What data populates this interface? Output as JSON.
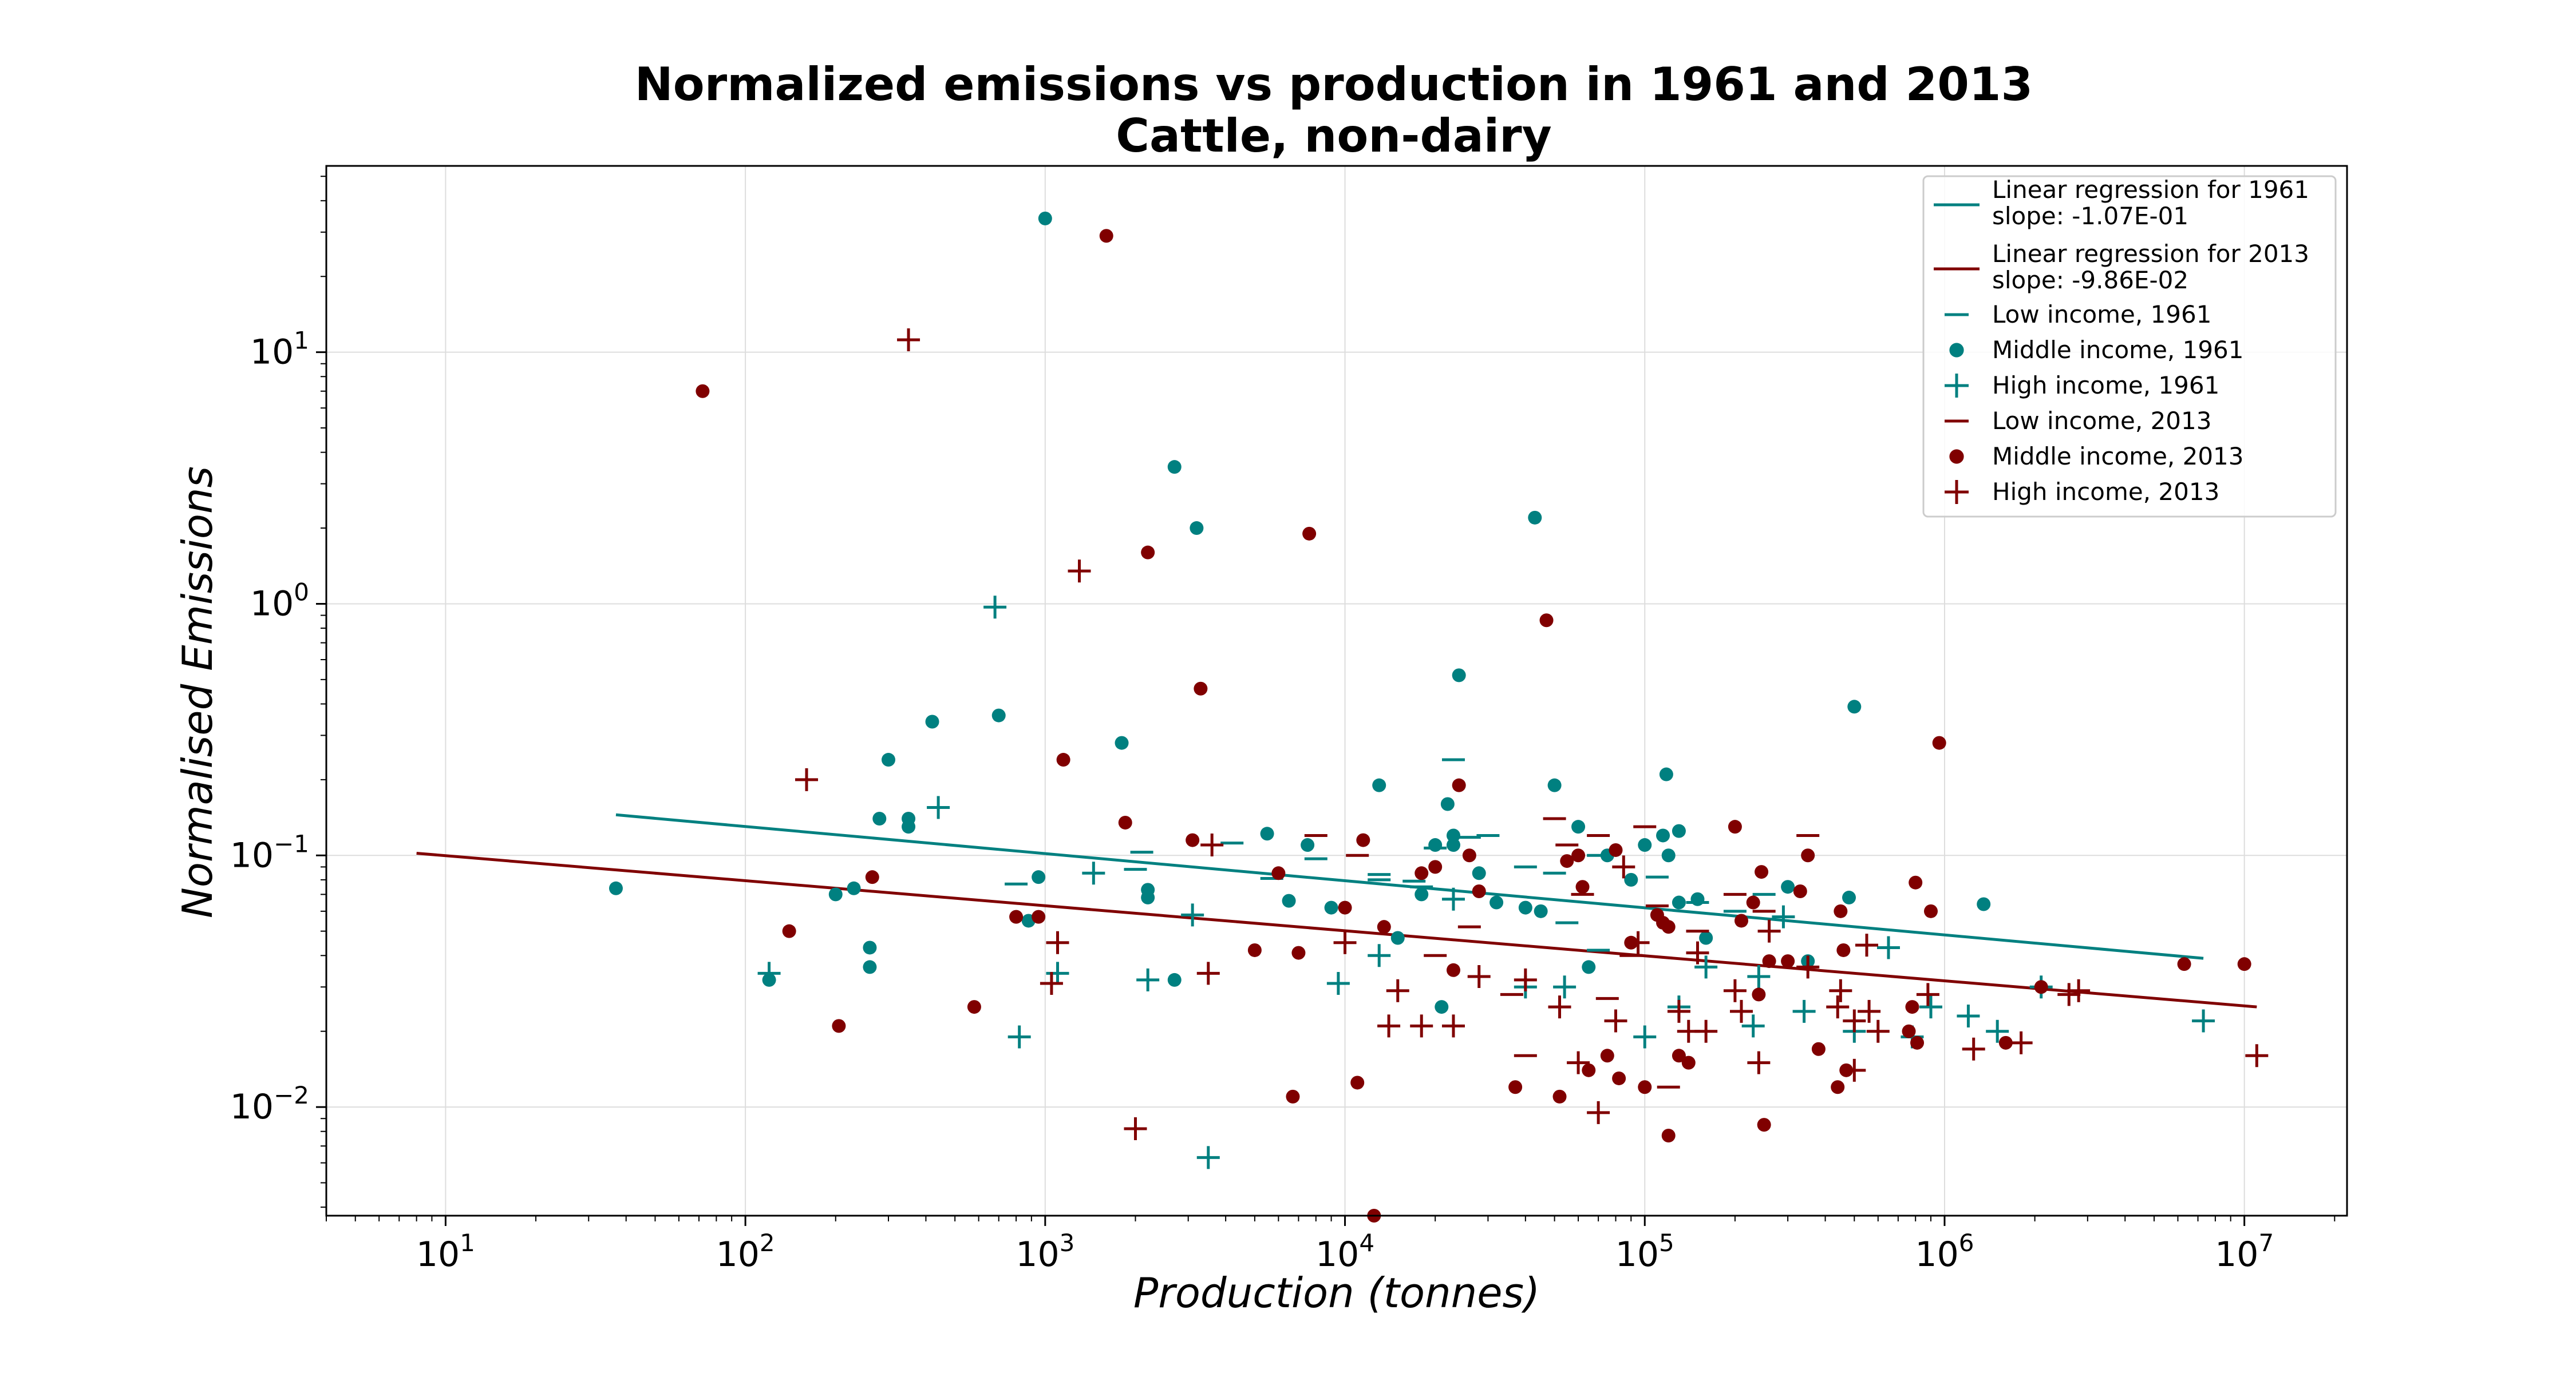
{
  "chart_data": {
    "type": "scatter",
    "title": "Normalized emissions vs production in 1961 and 2013",
    "subtitle": "Cattle, non-dairy",
    "xlabel": "Production (tonnes)",
    "ylabel": "Normalised Emissions",
    "x_scale": "log",
    "y_scale": "log",
    "xlim": [
      4,
      22000000
    ],
    "ylim": [
      0.0037,
      55
    ],
    "x_ticks": [
      {
        "base": "10",
        "exp": "1",
        "value": 10
      },
      {
        "base": "10",
        "exp": "2",
        "value": 100
      },
      {
        "base": "10",
        "exp": "3",
        "value": 1000
      },
      {
        "base": "10",
        "exp": "4",
        "value": 10000
      },
      {
        "base": "10",
        "exp": "5",
        "value": 100000
      },
      {
        "base": "10",
        "exp": "6",
        "value": 1000000
      },
      {
        "base": "10",
        "exp": "7",
        "value": 10000000
      }
    ],
    "y_ticks": [
      {
        "base": "10",
        "exp": "−2",
        "value": 0.01
      },
      {
        "base": "10",
        "exp": "−1",
        "value": 0.1
      },
      {
        "base": "10",
        "exp": "0",
        "value": 1
      },
      {
        "base": "10",
        "exp": "1",
        "value": 10
      }
    ],
    "grid": true,
    "legend_position": "top-right",
    "colors": {
      "c1961": "#008080",
      "c2013": "#800000",
      "grid": "#dddddd"
    },
    "regressions": [
      {
        "label_line1": "Linear regression for 1961",
        "label_line2": "slope: -1.07E-01",
        "color": "#008080",
        "x": [
          37,
          7300000
        ],
        "y": [
          0.145,
          0.039
        ]
      },
      {
        "label_line1": "Linear regression for 2013",
        "label_line2": "slope: -9.86E-02",
        "color": "#800000",
        "x": [
          8,
          11000000
        ],
        "y": [
          0.102,
          0.025
        ]
      }
    ],
    "series": [
      {
        "name": "Low income, 1961",
        "marker": "dash",
        "color": "#008080",
        "points": [
          [
            800,
            0.077
          ],
          [
            2100,
            0.103
          ],
          [
            2000,
            0.088
          ],
          [
            4200,
            0.112
          ],
          [
            5700,
            0.081
          ],
          [
            8000,
            0.097
          ],
          [
            13000,
            0.084
          ],
          [
            13000,
            0.08
          ],
          [
            17000,
            0.079
          ],
          [
            18000,
            0.075
          ],
          [
            20000,
            0.107
          ],
          [
            23000,
            0.24
          ],
          [
            26000,
            0.118
          ],
          [
            30000,
            0.12
          ],
          [
            40000,
            0.09
          ],
          [
            50000,
            0.085
          ],
          [
            55000,
            0.054
          ],
          [
            70000,
            0.1
          ],
          [
            70000,
            0.042
          ],
          [
            110000,
            0.082
          ],
          [
            150000,
            0.065
          ],
          [
            200000,
            0.06
          ],
          [
            250000,
            0.07
          ]
        ]
      },
      {
        "name": "Middle income, 1961",
        "marker": "dot",
        "color": "#008080",
        "points": [
          [
            37,
            0.074
          ],
          [
            120,
            0.032
          ],
          [
            200,
            0.07
          ],
          [
            230,
            0.074
          ],
          [
            260,
            0.036
          ],
          [
            260,
            0.043
          ],
          [
            280,
            0.14
          ],
          [
            300,
            0.24
          ],
          [
            350,
            0.13
          ],
          [
            350,
            0.14
          ],
          [
            420,
            0.34
          ],
          [
            700,
            0.36
          ],
          [
            880,
            0.055
          ],
          [
            950,
            0.082
          ],
          [
            1000,
            34
          ],
          [
            1800,
            0.28
          ],
          [
            2200,
            0.068
          ],
          [
            2200,
            0.073
          ],
          [
            2700,
            3.5
          ],
          [
            2700,
            0.032
          ],
          [
            3200,
            2.0
          ],
          [
            5500,
            0.122
          ],
          [
            6500,
            0.066
          ],
          [
            7500,
            0.11
          ],
          [
            9000,
            0.062
          ],
          [
            13000,
            0.19
          ],
          [
            15000,
            0.047
          ],
          [
            18000,
            0.07
          ],
          [
            20000,
            0.11
          ],
          [
            21000,
            0.025
          ],
          [
            22000,
            0.16
          ],
          [
            23000,
            0.12
          ],
          [
            23000,
            0.11
          ],
          [
            24000,
            0.52
          ],
          [
            28000,
            0.085
          ],
          [
            32000,
            0.065
          ],
          [
            40000,
            0.062
          ],
          [
            43000,
            2.2
          ],
          [
            45000,
            0.06
          ],
          [
            50000,
            0.19
          ],
          [
            60000,
            0.13
          ],
          [
            65000,
            0.036
          ],
          [
            75000,
            0.1
          ],
          [
            90000,
            0.08
          ],
          [
            100000,
            0.11
          ],
          [
            115000,
            0.12
          ],
          [
            118000,
            0.21
          ],
          [
            120000,
            0.1
          ],
          [
            130000,
            0.125
          ],
          [
            130000,
            0.065
          ],
          [
            150000,
            0.067
          ],
          [
            160000,
            0.047
          ],
          [
            300000,
            0.075
          ],
          [
            350000,
            0.038
          ],
          [
            480000,
            0.068
          ],
          [
            500000,
            0.39
          ],
          [
            1350000,
            0.064
          ]
        ]
      },
      {
        "name": "High income, 1961",
        "marker": "plus",
        "color": "#008080",
        "points": [
          [
            120,
            0.034
          ],
          [
            440,
            0.155
          ],
          [
            680,
            0.97
          ],
          [
            820,
            0.019
          ],
          [
            1100,
            0.034
          ],
          [
            1450,
            0.085
          ],
          [
            2200,
            0.032
          ],
          [
            3100,
            0.058
          ],
          [
            3500,
            0.0063
          ],
          [
            9500,
            0.031
          ],
          [
            13000,
            0.04
          ],
          [
            23000,
            0.067
          ],
          [
            40000,
            0.03
          ],
          [
            54000,
            0.03
          ],
          [
            100000,
            0.019
          ],
          [
            130000,
            0.025
          ],
          [
            160000,
            0.036
          ],
          [
            230000,
            0.021
          ],
          [
            240000,
            0.033
          ],
          [
            290000,
            0.057
          ],
          [
            340000,
            0.024
          ],
          [
            500000,
            0.02
          ],
          [
            650000,
            0.043
          ],
          [
            780000,
            0.019
          ],
          [
            900000,
            0.025
          ],
          [
            1200000,
            0.023
          ],
          [
            1500000,
            0.02
          ],
          [
            2100000,
            0.03
          ],
          [
            7300000,
            0.022
          ]
        ]
      },
      {
        "name": "Low income, 2013",
        "marker": "dash",
        "color": "#800000",
        "points": [
          [
            8000,
            0.12
          ],
          [
            11000,
            0.1
          ],
          [
            20000,
            0.04
          ],
          [
            26000,
            0.052
          ],
          [
            36000,
            0.028
          ],
          [
            40000,
            0.016
          ],
          [
            50000,
            0.14
          ],
          [
            55000,
            0.11
          ],
          [
            62000,
            0.07
          ],
          [
            70000,
            0.12
          ],
          [
            75000,
            0.027
          ],
          [
            90000,
            0.04
          ],
          [
            100000,
            0.13
          ],
          [
            110000,
            0.063
          ],
          [
            120000,
            0.012
          ],
          [
            150000,
            0.05
          ],
          [
            200000,
            0.07
          ],
          [
            250000,
            0.06
          ],
          [
            350000,
            0.12
          ]
        ]
      },
      {
        "name": "Middle income, 2013",
        "marker": "dot",
        "color": "#800000",
        "points": [
          [
            72,
            7.0
          ],
          [
            140,
            0.05
          ],
          [
            205,
            0.021
          ],
          [
            265,
            0.082
          ],
          [
            580,
            0.025
          ],
          [
            800,
            0.057
          ],
          [
            950,
            0.057
          ],
          [
            1150,
            0.24
          ],
          [
            1600,
            29
          ],
          [
            1850,
            0.135
          ],
          [
            2200,
            1.6
          ],
          [
            3100,
            0.115
          ],
          [
            3300,
            0.46
          ],
          [
            5000,
            0.042
          ],
          [
            6000,
            0.085
          ],
          [
            6700,
            0.011
          ],
          [
            7000,
            0.041
          ],
          [
            7600,
            1.9
          ],
          [
            10000,
            0.062
          ],
          [
            11000,
            0.0125
          ],
          [
            11500,
            0.115
          ],
          [
            12500,
            0.0037
          ],
          [
            13500,
            0.052
          ],
          [
            18000,
            0.085
          ],
          [
            20000,
            0.09
          ],
          [
            23000,
            0.035
          ],
          [
            24000,
            0.19
          ],
          [
            26000,
            0.1
          ],
          [
            28000,
            0.072
          ],
          [
            37000,
            0.012
          ],
          [
            47000,
            0.86
          ],
          [
            52000,
            0.011
          ],
          [
            55000,
            0.095
          ],
          [
            60000,
            0.1
          ],
          [
            62000,
            0.075
          ],
          [
            65000,
            0.014
          ],
          [
            75000,
            0.016
          ],
          [
            80000,
            0.105
          ],
          [
            82000,
            0.013
          ],
          [
            90000,
            0.045
          ],
          [
            100000,
            0.012
          ],
          [
            110000,
            0.058
          ],
          [
            115000,
            0.054
          ],
          [
            120000,
            0.052
          ],
          [
            120000,
            0.0077
          ],
          [
            130000,
            0.016
          ],
          [
            140000,
            0.015
          ],
          [
            200000,
            0.13
          ],
          [
            210000,
            0.055
          ],
          [
            230000,
            0.065
          ],
          [
            240000,
            0.028
          ],
          [
            245000,
            0.086
          ],
          [
            250000,
            0.0085
          ],
          [
            260000,
            0.038
          ],
          [
            300000,
            0.038
          ],
          [
            330000,
            0.072
          ],
          [
            350000,
            0.1
          ],
          [
            380000,
            0.017
          ],
          [
            440000,
            0.012
          ],
          [
            450000,
            0.06
          ],
          [
            460000,
            0.042
          ],
          [
            470000,
            0.014
          ],
          [
            760000,
            0.02
          ],
          [
            780000,
            0.025
          ],
          [
            800000,
            0.078
          ],
          [
            810000,
            0.018
          ],
          [
            900000,
            0.06
          ],
          [
            960000,
            0.28
          ],
          [
            1600000,
            0.018
          ],
          [
            2100000,
            0.03
          ],
          [
            6300000,
            0.037
          ],
          [
            10000000,
            0.037
          ]
        ]
      },
      {
        "name": "High income, 2013",
        "marker": "plus",
        "color": "#800000",
        "points": [
          [
            160,
            0.2
          ],
          [
            350,
            11.2
          ],
          [
            1050,
            0.031
          ],
          [
            1100,
            0.045
          ],
          [
            1300,
            1.35
          ],
          [
            2000,
            0.0082
          ],
          [
            3500,
            0.034
          ],
          [
            3600,
            0.11
          ],
          [
            10000,
            0.045
          ],
          [
            14000,
            0.021
          ],
          [
            15000,
            0.029
          ],
          [
            18000,
            0.021
          ],
          [
            23000,
            0.021
          ],
          [
            28000,
            0.033
          ],
          [
            40000,
            0.032
          ],
          [
            52000,
            0.025
          ],
          [
            60000,
            0.015
          ],
          [
            70000,
            0.0095
          ],
          [
            80000,
            0.022
          ],
          [
            85000,
            0.09
          ],
          [
            95000,
            0.045
          ],
          [
            130000,
            0.024
          ],
          [
            140000,
            0.02
          ],
          [
            150000,
            0.041
          ],
          [
            160000,
            0.02
          ],
          [
            200000,
            0.029
          ],
          [
            210000,
            0.024
          ],
          [
            240000,
            0.015
          ],
          [
            260000,
            0.05
          ],
          [
            350000,
            0.036
          ],
          [
            440000,
            0.025
          ],
          [
            450000,
            0.029
          ],
          [
            500000,
            0.022
          ],
          [
            500000,
            0.014
          ],
          [
            550000,
            0.044
          ],
          [
            560000,
            0.024
          ],
          [
            600000,
            0.02
          ],
          [
            880000,
            0.028
          ],
          [
            1250000,
            0.017
          ],
          [
            1800000,
            0.018
          ],
          [
            2600000,
            0.028
          ],
          [
            2800000,
            0.029
          ],
          [
            11000000,
            0.016
          ]
        ]
      }
    ]
  }
}
